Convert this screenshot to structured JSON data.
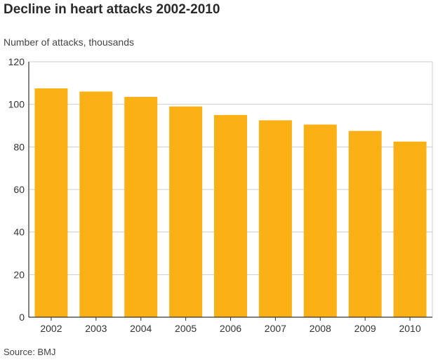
{
  "chart_data": {
    "type": "bar",
    "title": "Decline in heart attacks 2002-2010",
    "ylabel": "Number of attacks, thousands",
    "xlabel": "",
    "categories": [
      "2002",
      "2003",
      "2004",
      "2005",
      "2006",
      "2007",
      "2008",
      "2009",
      "2010"
    ],
    "values": [
      107.5,
      106,
      103.5,
      99,
      95,
      92.5,
      90.5,
      87.5,
      82.5
    ],
    "ylim": [
      0,
      120
    ],
    "yticks": [
      0,
      20,
      40,
      60,
      80,
      100,
      120
    ],
    "grid": true,
    "bar_color": "#fbb116",
    "grid_color": "#cccccc",
    "source": "Source: BMJ"
  }
}
